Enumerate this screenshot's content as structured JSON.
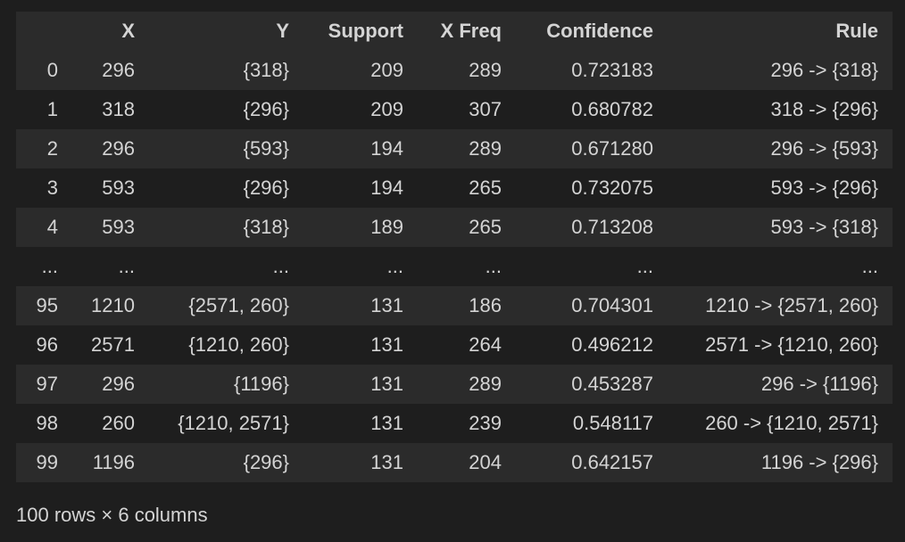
{
  "table": {
    "columns": [
      "",
      "X",
      "Y",
      "Support",
      "X Freq",
      "Confidence",
      "Rule"
    ],
    "rows": [
      {
        "index": "0",
        "X": "296",
        "Y": "{318}",
        "Support": "209",
        "XFreq": "289",
        "Confidence": "0.723183",
        "Rule": "296 -> {318}"
      },
      {
        "index": "1",
        "X": "318",
        "Y": "{296}",
        "Support": "209",
        "XFreq": "307",
        "Confidence": "0.680782",
        "Rule": "318 -> {296}"
      },
      {
        "index": "2",
        "X": "296",
        "Y": "{593}",
        "Support": "194",
        "XFreq": "289",
        "Confidence": "0.671280",
        "Rule": "296 -> {593}"
      },
      {
        "index": "3",
        "X": "593",
        "Y": "{296}",
        "Support": "194",
        "XFreq": "265",
        "Confidence": "0.732075",
        "Rule": "593 -> {296}"
      },
      {
        "index": "4",
        "X": "593",
        "Y": "{318}",
        "Support": "189",
        "XFreq": "265",
        "Confidence": "0.713208",
        "Rule": "593 -> {318}"
      },
      {
        "index": "...",
        "X": "...",
        "Y": "...",
        "Support": "...",
        "XFreq": "...",
        "Confidence": "...",
        "Rule": "..."
      },
      {
        "index": "95",
        "X": "1210",
        "Y": "{2571, 260}",
        "Support": "131",
        "XFreq": "186",
        "Confidence": "0.704301",
        "Rule": "1210 -> {2571, 260}"
      },
      {
        "index": "96",
        "X": "2571",
        "Y": "{1210, 260}",
        "Support": "131",
        "XFreq": "264",
        "Confidence": "0.496212",
        "Rule": "2571 -> {1210, 260}"
      },
      {
        "index": "97",
        "X": "296",
        "Y": "{1196}",
        "Support": "131",
        "XFreq": "289",
        "Confidence": "0.453287",
        "Rule": "296 -> {1196}"
      },
      {
        "index": "98",
        "X": "260",
        "Y": "{1210, 2571}",
        "Support": "131",
        "XFreq": "239",
        "Confidence": "0.548117",
        "Rule": "260 -> {1210, 2571}"
      },
      {
        "index": "99",
        "X": "1196",
        "Y": "{296}",
        "Support": "131",
        "XFreq": "204",
        "Confidence": "0.642157",
        "Rule": "1196 -> {296}"
      }
    ]
  },
  "footer": {
    "shape_text": "100 rows × 6 columns"
  },
  "colors": {
    "background": "#1e1e1e",
    "stripe": "#2b2b2b",
    "text": "#d4d4d4"
  }
}
